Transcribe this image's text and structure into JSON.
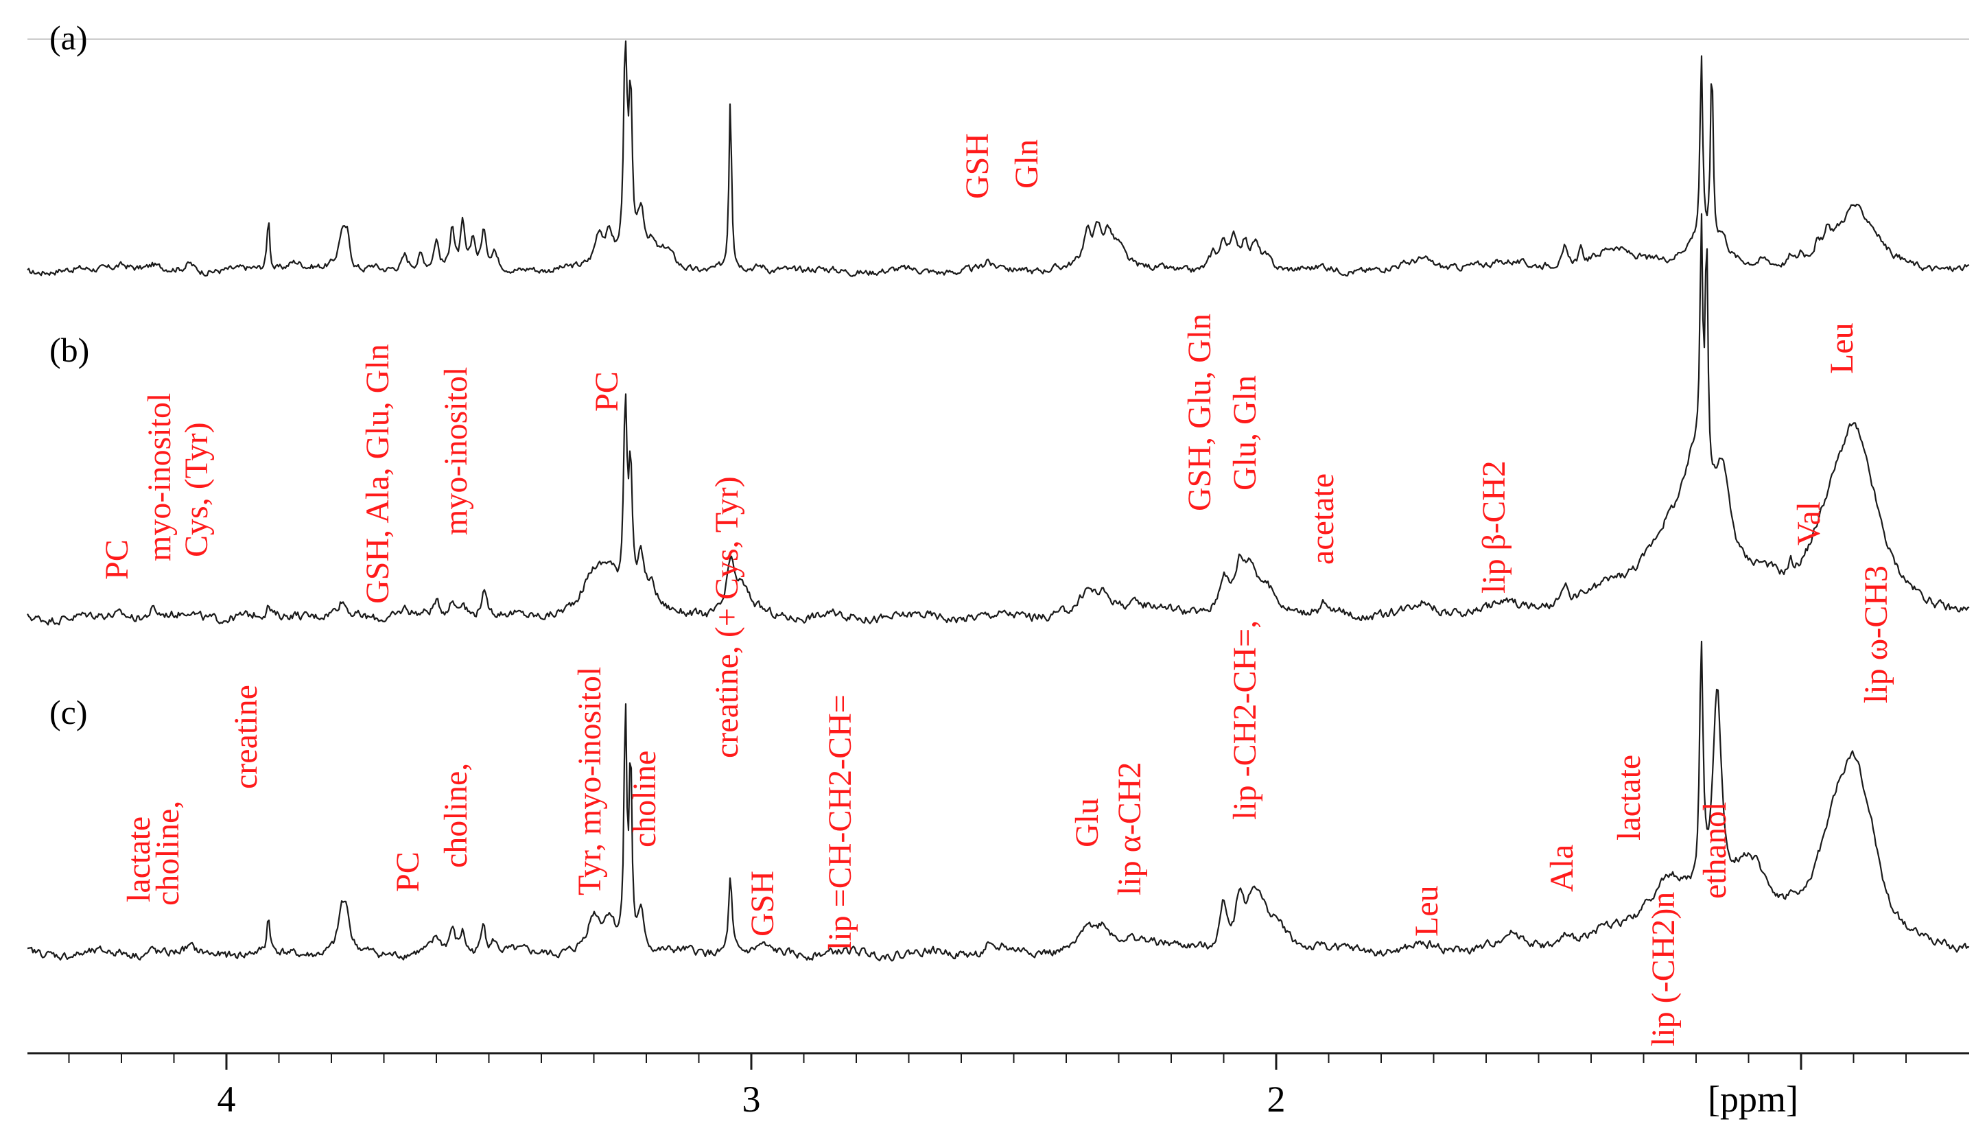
{
  "chart_data": {
    "type": "line",
    "title": "",
    "xlabel": "[ppm]",
    "ylabel": "",
    "x_axis": {
      "reversed": true,
      "xlim": [
        4.35,
        0.75
      ],
      "major_ticks": [
        4,
        3,
        2
      ],
      "tick_labels": [
        "4",
        "3",
        "2"
      ],
      "minor_step": 0.1
    },
    "grid": false,
    "panel_labels": [
      "(a)",
      "(b)",
      "(c)"
    ],
    "series": [
      {
        "panel": "(a)",
        "peaks": [
          [
            4.2,
            0.12,
            0.025
          ],
          [
            4.14,
            0.06,
            0.008
          ],
          [
            4.07,
            0.13,
            0.01
          ],
          [
            3.92,
            0.85,
            0.003
          ],
          [
            3.87,
            0.16,
            0.02
          ],
          [
            3.78,
            0.55,
            0.008
          ],
          [
            3.77,
            0.45,
            0.006
          ],
          [
            3.72,
            0.1,
            0.01
          ],
          [
            3.66,
            0.2,
            0.006
          ],
          [
            3.63,
            0.22,
            0.006
          ],
          [
            3.6,
            0.5,
            0.006
          ],
          [
            3.57,
            0.75,
            0.005
          ],
          [
            3.55,
            0.72,
            0.005
          ],
          [
            3.53,
            0.5,
            0.005
          ],
          [
            3.51,
            0.6,
            0.005
          ],
          [
            3.49,
            0.3,
            0.006
          ],
          [
            3.42,
            0.06,
            0.01
          ],
          [
            3.29,
            0.55,
            0.01
          ],
          [
            3.27,
            0.5,
            0.01
          ],
          [
            3.24,
            3.5,
            0.004
          ],
          [
            3.23,
            2.5,
            0.004
          ],
          [
            3.21,
            0.8,
            0.008
          ],
          [
            3.19,
            0.3,
            0.012
          ],
          [
            3.16,
            0.28,
            0.015
          ],
          [
            3.04,
            2.8,
            0.003
          ],
          [
            2.98,
            0.07,
            0.012
          ],
          [
            2.94,
            0.05,
            0.012
          ],
          [
            2.55,
            0.16,
            0.006
          ],
          [
            2.52,
            0.1,
            0.006
          ],
          [
            2.49,
            0.05,
            0.008
          ],
          [
            2.36,
            0.52,
            0.01
          ],
          [
            2.34,
            0.55,
            0.01
          ],
          [
            2.32,
            0.5,
            0.01
          ],
          [
            2.3,
            0.35,
            0.015
          ],
          [
            2.12,
            0.25,
            0.008
          ],
          [
            2.1,
            0.4,
            0.008
          ],
          [
            2.08,
            0.42,
            0.008
          ],
          [
            2.06,
            0.38,
            0.008
          ],
          [
            2.04,
            0.35,
            0.008
          ],
          [
            2.02,
            0.2,
            0.015
          ],
          [
            1.91,
            0.06,
            0.005
          ],
          [
            1.72,
            0.18,
            0.03
          ],
          [
            1.55,
            0.15,
            0.04
          ],
          [
            1.45,
            0.25,
            0.004
          ],
          [
            1.42,
            0.2,
            0.004
          ],
          [
            1.36,
            0.38,
            0.04
          ],
          [
            1.2,
            0.45,
            0.035
          ],
          [
            1.19,
            3.0,
            0.003
          ],
          [
            1.17,
            3.0,
            0.003
          ],
          [
            1.15,
            0.35,
            0.012
          ],
          [
            1.07,
            0.12,
            0.015
          ],
          [
            1.02,
            0.12,
            0.004
          ],
          [
            1.0,
            0.14,
            0.004
          ],
          [
            0.97,
            0.15,
            0.004
          ],
          [
            0.95,
            0.2,
            0.006
          ],
          [
            0.93,
            0.45,
            0.04
          ],
          [
            0.9,
            0.55,
            0.02
          ],
          [
            0.87,
            0.5,
            0.03
          ]
        ]
      },
      {
        "panel": "(b)",
        "peaks": [
          [
            4.2,
            0.05,
            0.02
          ],
          [
            4.14,
            0.1,
            0.008
          ],
          [
            4.07,
            0.08,
            0.01
          ],
          [
            3.92,
            0.12,
            0.004
          ],
          [
            3.87,
            0.06,
            0.02
          ],
          [
            3.78,
            0.18,
            0.01
          ],
          [
            3.66,
            0.1,
            0.01
          ],
          [
            3.6,
            0.15,
            0.008
          ],
          [
            3.57,
            0.18,
            0.008
          ],
          [
            3.55,
            0.2,
            0.008
          ],
          [
            3.51,
            0.3,
            0.006
          ],
          [
            3.3,
            0.45,
            0.025
          ],
          [
            3.27,
            0.45,
            0.02
          ],
          [
            3.24,
            2.5,
            0.004
          ],
          [
            3.23,
            1.6,
            0.004
          ],
          [
            3.21,
            0.6,
            0.008
          ],
          [
            3.19,
            0.3,
            0.012
          ],
          [
            3.04,
            0.55,
            0.008
          ],
          [
            3.02,
            0.35,
            0.02
          ],
          [
            2.36,
            0.22,
            0.015
          ],
          [
            2.33,
            0.2,
            0.02
          ],
          [
            2.27,
            0.15,
            0.06
          ],
          [
            2.1,
            0.45,
            0.01
          ],
          [
            2.07,
            0.45,
            0.01
          ],
          [
            2.05,
            0.45,
            0.015
          ],
          [
            2.02,
            0.3,
            0.03
          ],
          [
            1.91,
            0.1,
            0.005
          ],
          [
            1.72,
            0.15,
            0.025
          ],
          [
            1.55,
            0.12,
            0.04
          ],
          [
            1.45,
            0.2,
            0.005
          ],
          [
            1.36,
            0.25,
            0.05
          ],
          [
            1.25,
            0.8,
            0.06
          ],
          [
            1.2,
            1.4,
            0.03
          ],
          [
            1.19,
            3.0,
            0.003
          ],
          [
            1.18,
            3.0,
            0.003
          ],
          [
            1.15,
            1.2,
            0.02
          ],
          [
            1.07,
            0.3,
            0.04
          ],
          [
            1.02,
            0.15,
            0.005
          ],
          [
            0.96,
            0.35,
            0.04
          ],
          [
            0.93,
            0.8,
            0.04
          ],
          [
            0.9,
            1.2,
            0.03
          ],
          [
            0.87,
            0.9,
            0.04
          ]
        ]
      },
      {
        "panel": "(c)",
        "peaks": [
          [
            4.14,
            0.08,
            0.008
          ],
          [
            4.07,
            0.06,
            0.01
          ],
          [
            3.92,
            0.5,
            0.003
          ],
          [
            3.78,
            0.55,
            0.008
          ],
          [
            3.77,
            0.4,
            0.006
          ],
          [
            3.6,
            0.18,
            0.008
          ],
          [
            3.57,
            0.3,
            0.006
          ],
          [
            3.55,
            0.28,
            0.006
          ],
          [
            3.51,
            0.45,
            0.005
          ],
          [
            3.49,
            0.15,
            0.006
          ],
          [
            3.3,
            0.45,
            0.015
          ],
          [
            3.27,
            0.4,
            0.012
          ],
          [
            3.24,
            3.2,
            0.003
          ],
          [
            3.23,
            2.5,
            0.003
          ],
          [
            3.21,
            0.5,
            0.008
          ],
          [
            3.04,
            1.0,
            0.004
          ],
          [
            2.98,
            0.08,
            0.01
          ],
          [
            2.55,
            0.1,
            0.006
          ],
          [
            2.52,
            0.08,
            0.006
          ],
          [
            2.36,
            0.32,
            0.012
          ],
          [
            2.33,
            0.25,
            0.015
          ],
          [
            2.27,
            0.2,
            0.05
          ],
          [
            2.1,
            0.6,
            0.008
          ],
          [
            2.07,
            0.58,
            0.008
          ],
          [
            2.04,
            0.7,
            0.02
          ],
          [
            2.0,
            0.3,
            0.03
          ],
          [
            1.91,
            0.06,
            0.005
          ],
          [
            1.72,
            0.06,
            0.025
          ],
          [
            1.55,
            0.18,
            0.03
          ],
          [
            1.45,
            0.12,
            0.005
          ],
          [
            1.36,
            0.15,
            0.05
          ],
          [
            1.25,
            0.8,
            0.06
          ],
          [
            1.19,
            3.2,
            0.004
          ],
          [
            1.16,
            2.8,
            0.01
          ],
          [
            1.1,
            1.0,
            0.05
          ],
          [
            1.02,
            0.15,
            0.01
          ],
          [
            0.96,
            0.5,
            0.04
          ],
          [
            0.93,
            1.0,
            0.03
          ],
          [
            0.9,
            1.4,
            0.025
          ],
          [
            0.87,
            1.0,
            0.03
          ]
        ]
      }
    ],
    "annotations": [
      {
        "text": "GSH",
        "x": 2.55,
        "panel": "(a)"
      },
      {
        "text": "Gln",
        "x": 2.48,
        "panel": "(a)"
      },
      {
        "text": "GSH, Glu, Gln",
        "x": 2.12,
        "panel": "(b)"
      },
      {
        "text": "Glu, Gln",
        "x": 2.03,
        "panel": "(b)"
      },
      {
        "text": "Leu",
        "x": 0.88,
        "panel": "(b)"
      },
      {
        "text": "PC",
        "x": 4.22,
        "panel": "(b)"
      },
      {
        "text": "myo-inositol",
        "x": 4.1,
        "panel": "(b)"
      },
      {
        "text": "Cys, (Tyr)",
        "x": 4.04,
        "panel": "(b)"
      },
      {
        "text": "GSH, Ala, Glu, Gln",
        "x": 3.7,
        "panel": "(b)"
      },
      {
        "text": "myo-inositol",
        "x": 3.48,
        "panel": "(b)"
      },
      {
        "text": "PC",
        "x": 3.28,
        "panel": "(b)"
      },
      {
        "text": "creatine, (+ Cys, Tyr)",
        "x": 3.05,
        "panel": "(b)"
      },
      {
        "text": "acetate",
        "x": 1.9,
        "panel": "(b)"
      },
      {
        "text": "lip β-CH2",
        "x": 1.55,
        "panel": "(b)"
      },
      {
        "text": "Val",
        "x": 0.98,
        "panel": "(b)"
      },
      {
        "text": "lip ω-CH3",
        "x": 0.88,
        "panel": "(b)"
      },
      {
        "text": "lactate",
        "x": 4.17,
        "panel": "(c)"
      },
      {
        "text": "choline,",
        "x": 4.1,
        "panel": "(c)"
      },
      {
        "text": "creatine",
        "x": 3.92,
        "panel": "(c)"
      },
      {
        "text": "PC",
        "x": 3.6,
        "panel": "(c)"
      },
      {
        "text": "choline,",
        "x": 3.5,
        "panel": "(c)"
      },
      {
        "text": "Tyr, myo-inositol",
        "x": 3.32,
        "panel": "(c)"
      },
      {
        "text": "choline",
        "x": 3.19,
        "panel": "(c)"
      },
      {
        "text": "GSH",
        "x": 2.95,
        "panel": "(c)"
      },
      {
        "text": "lip =CH-CH2-CH=",
        "x": 2.85,
        "panel": "(c)"
      },
      {
        "text": "Glu",
        "x": 2.39,
        "panel": "(c)"
      },
      {
        "text": "lip α-CH2",
        "x": 2.31,
        "panel": "(c)"
      },
      {
        "text": "lip -CH2-CH=,",
        "x": 2.08,
        "panel": "(c)"
      },
      {
        "text": "Leu",
        "x": 1.7,
        "panel": "(c)"
      },
      {
        "text": "Ala",
        "x": 1.47,
        "panel": "(c)"
      },
      {
        "text": "lactate",
        "x": 1.33,
        "panel": "(c)"
      },
      {
        "text": "lip (-CH2)n",
        "x": 1.25,
        "panel": "(c)"
      },
      {
        "text": "ethanol",
        "x": 1.18,
        "panel": "(c)"
      }
    ]
  },
  "colors": {
    "spectrum": "#1a1a1a",
    "annotation": "#ff1a1a",
    "axis": "#1a1a1a",
    "reference_line": "#cccccc"
  }
}
